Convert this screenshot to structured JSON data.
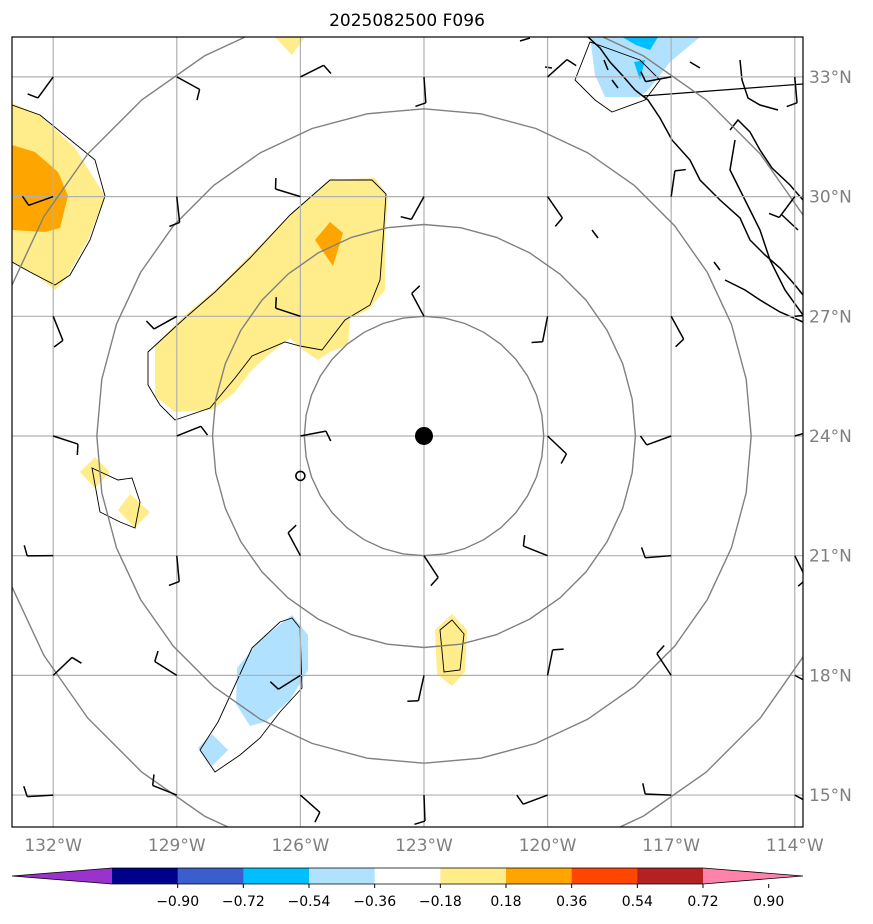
{
  "title": "2025082500 F096",
  "map": {
    "lon_range": [
      -133,
      -113.8
    ],
    "lat_range": [
      14.2,
      34
    ],
    "center": {
      "lon": -123,
      "lat": 24
    },
    "lat_ticks": [
      {
        "value": 15,
        "label": "15°N"
      },
      {
        "value": 18,
        "label": "18°N"
      },
      {
        "value": 21,
        "label": "21°N"
      },
      {
        "value": 24,
        "label": "24°N"
      },
      {
        "value": 27,
        "label": "27°N"
      },
      {
        "value": 30,
        "label": "30°N"
      },
      {
        "value": 33,
        "label": "33°N"
      }
    ],
    "lon_ticks": [
      {
        "value": -132,
        "label": "132°W"
      },
      {
        "value": -129,
        "label": "129°W"
      },
      {
        "value": -126,
        "label": "126°W"
      },
      {
        "value": -123,
        "label": "123°W"
      },
      {
        "value": -120,
        "label": "120°W"
      },
      {
        "value": -117,
        "label": "117°W"
      },
      {
        "value": -114,
        "label": "114°W"
      }
    ],
    "range_rings_deg": [
      3,
      5.3,
      8.2,
      11
    ]
  },
  "colorbar": {
    "colors": [
      "#9a32cd",
      "#00008b",
      "#3a5fcd",
      "#00bfff",
      "#b0e2ff",
      "#ffffff",
      "#ffec8b",
      "#ffa500",
      "#ff4500",
      "#b22222",
      "#ff82ab"
    ],
    "labels": [
      "−0.90",
      "−0.72",
      "−0.54",
      "−0.36",
      "−0.18",
      "0.18",
      "0.36",
      "0.54",
      "0.72",
      "0.90"
    ]
  },
  "colors": {
    "grid": "#b0b0b0",
    "ring": "#808080",
    "pos1": "#ffec8b",
    "pos2": "#ffa500",
    "neg1": "#b0e2ff",
    "neg2": "#00bfff"
  }
}
